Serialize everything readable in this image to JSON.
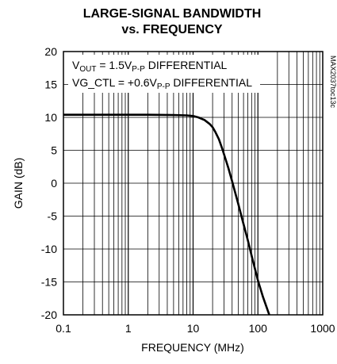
{
  "chart_data": {
    "type": "line",
    "title_line1": "LARGE-SIGNAL BANDWIDTH",
    "title_line2": "vs. FREQUENCY",
    "xlabel": "FREQUENCY (MHz)",
    "ylabel": "GAIN (dB)",
    "x_scale": "log",
    "xlim": [
      0.1,
      1000
    ],
    "ylim": [
      -20,
      20
    ],
    "x_ticks": [
      0.1,
      1,
      10,
      100,
      1000
    ],
    "x_tick_labels": [
      "0.1",
      "1",
      "10",
      "100",
      "1000"
    ],
    "y_ticks": [
      20,
      15,
      10,
      5,
      0,
      -5,
      -10,
      -15,
      -20
    ],
    "y_tick_labels": [
      "20",
      "15",
      "10",
      "5",
      "0",
      "-5",
      "-10",
      "-15",
      "-20"
    ],
    "grid": true,
    "annotations": [
      {
        "main": "V",
        "sub": "OUT",
        "rest_a": " = 1.5V",
        "sub2": "P-P",
        "rest_b": " DIFFERENTIAL"
      },
      {
        "main": "VG_CTL = +0.6V",
        "sub": "P-P",
        "rest_a": " DIFFERENTIAL",
        "sub2": "",
        "rest_b": ""
      }
    ],
    "side_code": "MAX2037toc13c",
    "series": [
      {
        "x": [
          0.1,
          0.2,
          0.5,
          1,
          2,
          5,
          8,
          10,
          12,
          15,
          18,
          20,
          22,
          25,
          28,
          30,
          35,
          40,
          50,
          60,
          70,
          80,
          100,
          120,
          150,
          180
        ],
        "y": [
          10.4,
          10.4,
          10.4,
          10.4,
          10.4,
          10.35,
          10.3,
          10.2,
          10.0,
          9.6,
          9.0,
          8.5,
          7.8,
          6.7,
          5.3,
          4.4,
          2.3,
          0.3,
          -3.2,
          -6.2,
          -8.7,
          -11.0,
          -14.8,
          -17.3,
          -20.0,
          -22.0
        ]
      }
    ]
  }
}
